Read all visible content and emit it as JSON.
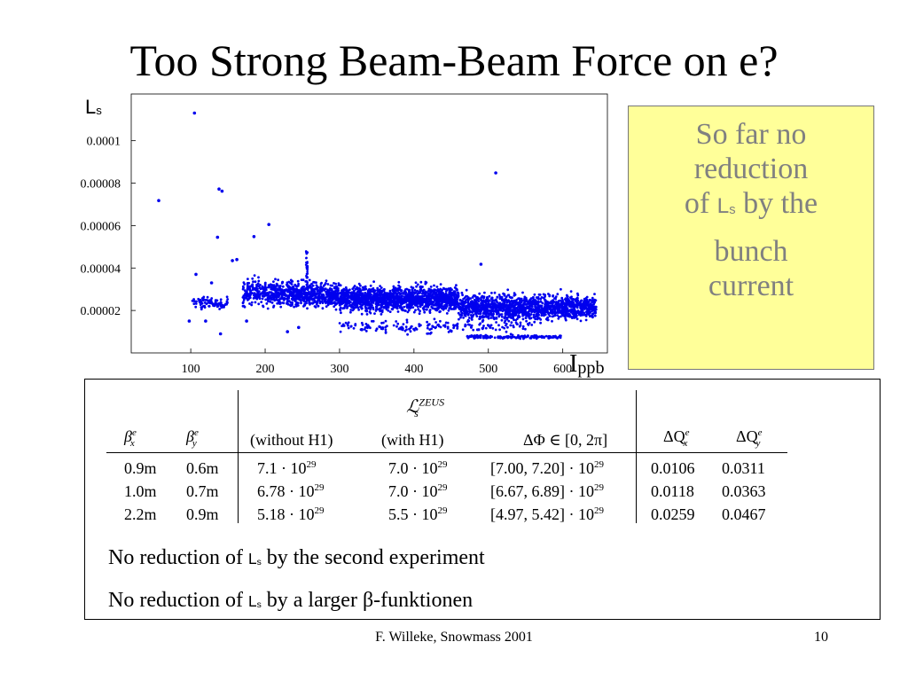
{
  "slide": {
    "title": "Too Strong Beam-Beam Force on e?",
    "footer": "F. Willeke, Snowmass  2001",
    "page_number": "10"
  },
  "note": {
    "line1": "So far no",
    "line2": "reduction",
    "line3_pre": "of",
    "line3_sym": "L",
    "line3_sub": "s",
    "line3_post": "by the",
    "line4": "bunch",
    "line5": "current"
  },
  "chart_data": {
    "type": "scatter",
    "ylabel_main": "L",
    "ylabel_sub": "s",
    "xlabel_main": "I",
    "xlabel_sub": "ppb",
    "xlim": [
      20,
      660
    ],
    "ylim": [
      0,
      0.000122
    ],
    "xticks": [
      100,
      200,
      300,
      400,
      500,
      600
    ],
    "yticks": [
      2e-05,
      4e-05,
      6e-05,
      8e-05,
      0.0001
    ],
    "ytick_labels": [
      "0.00002",
      "0.00004",
      "0.00006",
      "0.00008",
      "0.0001"
    ],
    "color": "#0000ee",
    "outliers": [
      [
        105,
        0.000113
      ],
      [
        57,
        7.18e-05
      ],
      [
        138,
        7.72e-05
      ],
      [
        142,
        7.62e-05
      ],
      [
        510,
        8.48e-05
      ],
      [
        205,
        6.05e-05
      ],
      [
        185,
        5.48e-05
      ],
      [
        136,
        5.45e-05
      ],
      [
        156,
        4.35e-05
      ],
      [
        162,
        4.4e-05
      ],
      [
        107,
        3.7e-05
      ],
      [
        128,
        3.3e-05
      ],
      [
        490,
        4.18e-05
      ],
      [
        120,
        1.5e-05
      ],
      [
        98,
        1.5e-05
      ],
      [
        140,
        9e-06
      ],
      [
        245,
        1.2e-05
      ],
      [
        230,
        1e-05
      ],
      [
        175,
        1.5e-05
      ],
      [
        330,
        1.1e-05
      ]
    ],
    "clusters": [
      {
        "x_range": [
          102,
          150
        ],
        "y_center": 2.35e-05,
        "y_spread": 2.5e-06,
        "count": 90
      },
      {
        "x_range": [
          170,
          215
        ],
        "y_center": 2.85e-05,
        "y_spread": 6e-06,
        "count": 220
      },
      {
        "x_range": [
          215,
          300
        ],
        "y_center": 2.75e-05,
        "y_spread": 5.5e-06,
        "count": 600
      },
      {
        "x_range": [
          300,
          460
        ],
        "y_center": 2.55e-05,
        "y_spread": 5.5e-06,
        "count": 1500
      },
      {
        "x_range": [
          460,
          645
        ],
        "y_center": 2.15e-05,
        "y_spread": 5.5e-06,
        "count": 1400
      },
      {
        "x_range": [
          470,
          600
        ],
        "y_center": 7.5e-06,
        "y_spread": 8e-07,
        "count": 160
      },
      {
        "x_range": [
          300,
          560
        ],
        "y_center": 1.25e-05,
        "y_spread": 3e-06,
        "count": 180
      }
    ],
    "spike": {
      "x": 256,
      "y_from": 3e-05,
      "y_to": 4.8e-05
    }
  },
  "table": {
    "zeus_header": "ℒ",
    "zeus_sup": "ZEUS",
    "zeus_sub": "s",
    "headers": {
      "beta_x": "β",
      "beta_x_sup": "e",
      "beta_x_sub": "x",
      "beta_y": "β",
      "beta_y_sup": "e",
      "beta_y_sub": "y",
      "without": "(without H1)",
      "with": "(with H1)",
      "dphi": "ΔΦ ∈ [0, 2π]",
      "dqx": "ΔQ",
      "dqx_sup": "e",
      "dqx_sub": "x",
      "dqy": "ΔQ",
      "dqy_sup": "e",
      "dqy_sub": "y"
    },
    "rows": [
      {
        "bx": "0.9m",
        "by": "0.6m",
        "without": "7.1  · 10",
        "without_exp": "29",
        "with": "7.0  · 10",
        "with_exp": "29",
        "range": "[7.00, 7.20] · 10",
        "range_exp": "29",
        "dqx": "0.0106",
        "dqy": "0.0311"
      },
      {
        "bx": "1.0m",
        "by": "0.7m",
        "without": "6.78 · 10",
        "without_exp": "29",
        "with": "7.0  · 10",
        "with_exp": "29",
        "range": "[6.67, 6.89] · 10",
        "range_exp": "29",
        "dqx": "0.0118",
        "dqy": "0.0363"
      },
      {
        "bx": "2.2m",
        "by": "0.9m",
        "without": "5.18 · 10",
        "without_exp": "29",
        "with": "5.5  · 10",
        "with_exp": "29",
        "range": "[4.97, 5.42] · 10",
        "range_exp": "29",
        "dqx": "0.0259",
        "dqy": "0.0467"
      }
    ],
    "note1_pre": "No reduction of",
    "note1_sym": "L",
    "note1_sub": "s",
    "note1_post": "by the second experiment",
    "note2_pre": "No reduction of",
    "note2_sym": "L",
    "note2_sub": "s",
    "note2_post": "by a larger β-funktionen"
  }
}
